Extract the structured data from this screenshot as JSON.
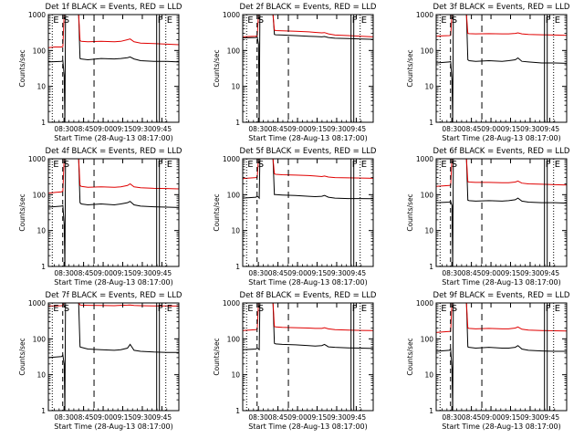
{
  "figure": {
    "xlabel": "Start Time (28-Aug-13 08:17:00)",
    "ylabel": "Counts/sec",
    "series_colors": {
      "events": "#000000",
      "lld": "#e00000"
    }
  },
  "chart_data": [
    {
      "type": "line",
      "title": "Det 1f BLACK = Events, RED = LLD",
      "xlabel": "Start Time (28-Aug-13 08:17:00)",
      "ylabel": "Counts/sec",
      "y_scale": "log",
      "ylim": [
        1,
        1000
      ],
      "xlim_minutes_after_start": [
        0,
        99
      ],
      "x_tick_labels": [
        "08:30",
        "08:45",
        "09:00",
        "09:15",
        "09:30",
        "09:45"
      ],
      "y_tick_labels": [
        "1",
        "10",
        "100",
        "1000"
      ],
      "markers": [
        "E",
        "S",
        "F",
        "E"
      ],
      "series": [
        {
          "x": [
            0,
            10,
            11,
            12,
            12.5,
            13,
            23,
            24,
            25,
            30,
            40,
            50,
            55,
            60,
            62,
            65,
            70,
            80,
            90,
            99
          ],
          "values": [
            48,
            50,
            52,
            20,
            1,
            1000,
            1000,
            60,
            58,
            55,
            60,
            58,
            60,
            63,
            66,
            58,
            52,
            50,
            50,
            48
          ]
        },
        {
          "x": [
            0,
            5,
            10,
            11,
            12,
            13,
            23,
            24,
            25,
            30,
            40,
            50,
            55,
            60,
            62,
            65,
            70,
            80,
            90,
            99
          ],
          "values": [
            120,
            125,
            125,
            130,
            1000,
            1000,
            1000,
            190,
            180,
            175,
            180,
            175,
            180,
            200,
            210,
            175,
            160,
            155,
            150,
            145
          ]
        }
      ]
    },
    {
      "type": "line",
      "title": "Det 2f BLACK = Events, RED = LLD",
      "xlabel": "Start Time (28-Aug-13 08:17:00)",
      "ylabel": "Counts/sec",
      "y_scale": "log",
      "ylim": [
        1,
        1000
      ],
      "xlim_minutes_after_start": [
        0,
        99
      ],
      "x_tick_labels": [
        "08:30",
        "08:45",
        "09:00",
        "09:15",
        "09:30",
        "09:45"
      ],
      "y_tick_labels": [
        "1",
        "10",
        "100",
        "1000"
      ],
      "markers": [
        "E",
        "S",
        "F",
        "E"
      ],
      "series": [
        {
          "x": [
            0,
            10,
            11,
            12,
            12.5,
            13,
            23,
            24,
            25,
            30,
            40,
            50,
            55,
            60,
            62,
            65,
            70,
            80,
            90,
            99
          ],
          "values": [
            225,
            230,
            240,
            150,
            1,
            1000,
            1000,
            280,
            275,
            270,
            260,
            250,
            245,
            240,
            245,
            230,
            220,
            215,
            210,
            205
          ]
        },
        {
          "x": [
            0,
            5,
            10,
            11,
            12,
            13,
            23,
            24,
            25,
            30,
            40,
            50,
            55,
            60,
            62,
            65,
            70,
            80,
            90,
            99
          ],
          "values": [
            240,
            245,
            250,
            260,
            1000,
            1000,
            1000,
            370,
            360,
            355,
            345,
            330,
            320,
            310,
            315,
            290,
            270,
            260,
            250,
            240
          ]
        }
      ]
    },
    {
      "type": "line",
      "title": "Det 3f BLACK = Events, RED = LLD",
      "xlabel": "Start Time (28-Aug-13 08:17:00)",
      "ylabel": "Counts/sec",
      "y_scale": "log",
      "ylim": [
        1,
        1000
      ],
      "xlim_minutes_after_start": [
        0,
        99
      ],
      "x_tick_labels": [
        "08:30",
        "08:45",
        "09:00",
        "09:15",
        "09:30",
        "09:45"
      ],
      "y_tick_labels": [
        "1",
        "10",
        "100",
        "1000"
      ],
      "markers": [
        "E",
        "S",
        "F",
        "E"
      ],
      "series": [
        {
          "x": [
            0,
            10,
            11,
            12,
            12.5,
            13,
            23,
            24,
            25,
            30,
            40,
            50,
            55,
            60,
            62,
            65,
            70,
            80,
            90,
            99
          ],
          "values": [
            45,
            48,
            50,
            15,
            1,
            1000,
            1000,
            55,
            52,
            50,
            52,
            50,
            52,
            55,
            62,
            50,
            48,
            45,
            45,
            44
          ]
        },
        {
          "x": [
            0,
            5,
            10,
            11,
            12,
            13,
            23,
            24,
            25,
            30,
            40,
            50,
            55,
            60,
            62,
            65,
            70,
            80,
            90,
            99
          ],
          "values": [
            250,
            255,
            260,
            265,
            1000,
            1000,
            1000,
            300,
            295,
            290,
            295,
            290,
            290,
            300,
            310,
            290,
            280,
            275,
            270,
            265
          ]
        }
      ]
    },
    {
      "type": "line",
      "title": "Det 4f BLACK = Events, RED = LLD",
      "xlabel": "Start Time (28-Aug-13 08:17:00)",
      "ylabel": "Counts/sec",
      "y_scale": "log",
      "ylim": [
        1,
        1000
      ],
      "xlim_minutes_after_start": [
        0,
        99
      ],
      "x_tick_labels": [
        "08:30",
        "08:45",
        "09:00",
        "09:15",
        "09:30",
        "09:45"
      ],
      "y_tick_labels": [
        "1",
        "10",
        "100",
        "1000"
      ],
      "markers": [
        "E",
        "S",
        "F",
        "E"
      ],
      "series": [
        {
          "x": [
            0,
            10,
            11,
            12,
            12.5,
            13,
            23,
            24,
            25,
            30,
            40,
            50,
            55,
            60,
            62,
            65,
            70,
            80,
            90,
            99
          ],
          "values": [
            45,
            48,
            50,
            15,
            1,
            1000,
            1000,
            60,
            55,
            52,
            55,
            52,
            55,
            60,
            65,
            52,
            48,
            46,
            45,
            44
          ]
        },
        {
          "x": [
            0,
            5,
            10,
            11,
            12,
            13,
            23,
            24,
            25,
            30,
            40,
            50,
            55,
            60,
            62,
            65,
            70,
            80,
            90,
            99
          ],
          "values": [
            110,
            115,
            120,
            125,
            1000,
            1000,
            1000,
            180,
            170,
            160,
            165,
            160,
            165,
            180,
            200,
            165,
            155,
            150,
            148,
            145
          ]
        }
      ]
    },
    {
      "type": "line",
      "title": "Det 5f BLACK = Events, RED = LLD",
      "xlabel": "Start Time (28-Aug-13 08:17:00)",
      "ylabel": "Counts/sec",
      "y_scale": "log",
      "ylim": [
        1,
        1000
      ],
      "xlim_minutes_after_start": [
        0,
        99
      ],
      "x_tick_labels": [
        "08:30",
        "08:45",
        "09:00",
        "09:15",
        "09:30",
        "09:45"
      ],
      "y_tick_labels": [
        "1",
        "10",
        "100",
        "1000"
      ],
      "markers": [
        "E",
        "S",
        "F",
        "E"
      ],
      "series": [
        {
          "x": [
            0,
            10,
            11,
            12,
            12.5,
            13,
            23,
            24,
            25,
            30,
            40,
            50,
            55,
            60,
            62,
            65,
            70,
            80,
            90,
            99
          ],
          "values": [
            80,
            85,
            90,
            85,
            80,
            1000,
            1000,
            100,
            100,
            98,
            95,
            90,
            88,
            90,
            95,
            85,
            80,
            78,
            78,
            77
          ]
        },
        {
          "x": [
            0,
            5,
            10,
            11,
            12,
            13,
            23,
            24,
            25,
            30,
            40,
            50,
            55,
            60,
            62,
            65,
            70,
            80,
            90,
            99
          ],
          "values": [
            280,
            290,
            300,
            310,
            1000,
            1000,
            1000,
            380,
            370,
            360,
            350,
            340,
            330,
            320,
            330,
            310,
            300,
            295,
            290,
            285
          ]
        }
      ]
    },
    {
      "type": "line",
      "title": "Det 6f BLACK = Events, RED = LLD",
      "xlabel": "Start Time (28-Aug-13 08:17:00)",
      "ylabel": "Counts/sec",
      "y_scale": "log",
      "ylim": [
        1,
        1000
      ],
      "xlim_minutes_after_start": [
        0,
        99
      ],
      "x_tick_labels": [
        "08:30",
        "08:45",
        "09:00",
        "09:15",
        "09:30",
        "09:45"
      ],
      "y_tick_labels": [
        "1",
        "10",
        "100",
        "1000"
      ],
      "markers": [
        "E",
        "S",
        "F",
        "E"
      ],
      "series": [
        {
          "x": [
            0,
            10,
            11,
            12,
            12.5,
            13,
            23,
            24,
            25,
            30,
            40,
            50,
            55,
            60,
            62,
            65,
            70,
            80,
            90,
            99
          ],
          "values": [
            60,
            62,
            65,
            50,
            1,
            1000,
            1000,
            70,
            68,
            66,
            68,
            66,
            68,
            72,
            80,
            66,
            62,
            60,
            60,
            58
          ]
        },
        {
          "x": [
            0,
            5,
            10,
            11,
            12,
            13,
            23,
            24,
            25,
            30,
            40,
            50,
            55,
            60,
            62,
            65,
            70,
            80,
            90,
            99
          ],
          "values": [
            170,
            175,
            180,
            185,
            1000,
            1000,
            1000,
            230,
            225,
            220,
            220,
            215,
            215,
            225,
            240,
            210,
            200,
            195,
            190,
            185
          ]
        }
      ]
    },
    {
      "type": "line",
      "title": "Det 7f BLACK = Events, RED = LLD",
      "xlabel": "Start Time (28-Aug-13 08:17:00)",
      "ylabel": "Counts/sec",
      "y_scale": "log",
      "ylim": [
        1,
        1000
      ],
      "xlim_minutes_after_start": [
        0,
        99
      ],
      "x_tick_labels": [
        "08:30",
        "08:45",
        "09:00",
        "09:15",
        "09:30",
        "09:45"
      ],
      "y_tick_labels": [
        "1",
        "10",
        "100",
        "1000"
      ],
      "markers": [
        "E",
        "S",
        "F",
        "E"
      ],
      "series": [
        {
          "x": [
            0,
            10,
            11,
            12,
            12.5,
            13,
            23,
            24,
            25,
            30,
            40,
            50,
            55,
            60,
            62,
            65,
            70,
            80,
            90,
            99
          ],
          "values": [
            30,
            32,
            35,
            20,
            1,
            1000,
            1000,
            60,
            58,
            52,
            50,
            48,
            50,
            55,
            70,
            48,
            45,
            43,
            42,
            42
          ]
        },
        {
          "x": [
            0,
            5,
            10,
            11,
            12,
            13,
            23,
            24,
            25,
            30,
            40,
            50,
            55,
            60,
            62,
            65,
            70,
            80,
            90,
            99
          ],
          "values": [
            820,
            830,
            840,
            850,
            1000,
            1000,
            1000,
            880,
            870,
            860,
            850,
            840,
            860,
            870,
            880,
            850,
            840,
            830,
            830,
            820
          ]
        }
      ]
    },
    {
      "type": "line",
      "title": "Det 8f BLACK = Events, RED = LLD",
      "xlabel": "Start Time (28-Aug-13 08:17:00)",
      "ylabel": "Counts/sec",
      "y_scale": "log",
      "ylim": [
        1,
        1000
      ],
      "xlim_minutes_after_start": [
        0,
        99
      ],
      "x_tick_labels": [
        "08:30",
        "08:45",
        "09:00",
        "09:15",
        "09:30",
        "09:45"
      ],
      "y_tick_labels": [
        "1",
        "10",
        "100",
        "1000"
      ],
      "markers": [
        "E",
        "S",
        "F",
        "E"
      ],
      "series": [
        {
          "x": [
            0,
            10,
            11,
            12,
            12.5,
            13,
            23,
            24,
            25,
            30,
            40,
            50,
            55,
            60,
            62,
            65,
            70,
            80,
            90,
            99
          ],
          "values": [
            50,
            52,
            55,
            52,
            50,
            1000,
            1000,
            75,
            72,
            70,
            68,
            65,
            63,
            65,
            70,
            60,
            58,
            56,
            55,
            54
          ]
        },
        {
          "x": [
            0,
            5,
            10,
            11,
            12,
            13,
            23,
            24,
            25,
            30,
            40,
            50,
            55,
            60,
            62,
            65,
            70,
            80,
            90,
            99
          ],
          "values": [
            170,
            175,
            180,
            185,
            1000,
            1000,
            1000,
            220,
            215,
            210,
            205,
            200,
            195,
            195,
            205,
            190,
            180,
            175,
            172,
            170
          ]
        }
      ]
    },
    {
      "type": "line",
      "title": "Det 9f BLACK = Events, RED = LLD",
      "xlabel": "Start Time (28-Aug-13 08:17:00)",
      "ylabel": "Counts/sec",
      "y_scale": "log",
      "ylim": [
        1,
        1000
      ],
      "xlim_minutes_after_start": [
        0,
        99
      ],
      "x_tick_labels": [
        "08:30",
        "08:45",
        "09:00",
        "09:15",
        "09:30",
        "09:45"
      ],
      "y_tick_labels": [
        "1",
        "10",
        "100",
        "1000"
      ],
      "markers": [
        "E",
        "S",
        "F",
        "E"
      ],
      "series": [
        {
          "x": [
            0,
            10,
            11,
            12,
            12.5,
            13,
            23,
            24,
            25,
            30,
            40,
            50,
            55,
            60,
            62,
            65,
            70,
            80,
            90,
            99
          ],
          "values": [
            45,
            48,
            52,
            15,
            1,
            1000,
            1000,
            60,
            58,
            55,
            58,
            55,
            55,
            58,
            65,
            52,
            48,
            46,
            45,
            45
          ]
        },
        {
          "x": [
            0,
            5,
            10,
            11,
            12,
            13,
            23,
            24,
            25,
            30,
            40,
            50,
            55,
            60,
            62,
            65,
            70,
            80,
            90,
            99
          ],
          "values": [
            150,
            155,
            160,
            165,
            1000,
            1000,
            1000,
            200,
            195,
            190,
            195,
            190,
            190,
            200,
            215,
            185,
            175,
            170,
            168,
            165
          ]
        }
      ]
    }
  ]
}
